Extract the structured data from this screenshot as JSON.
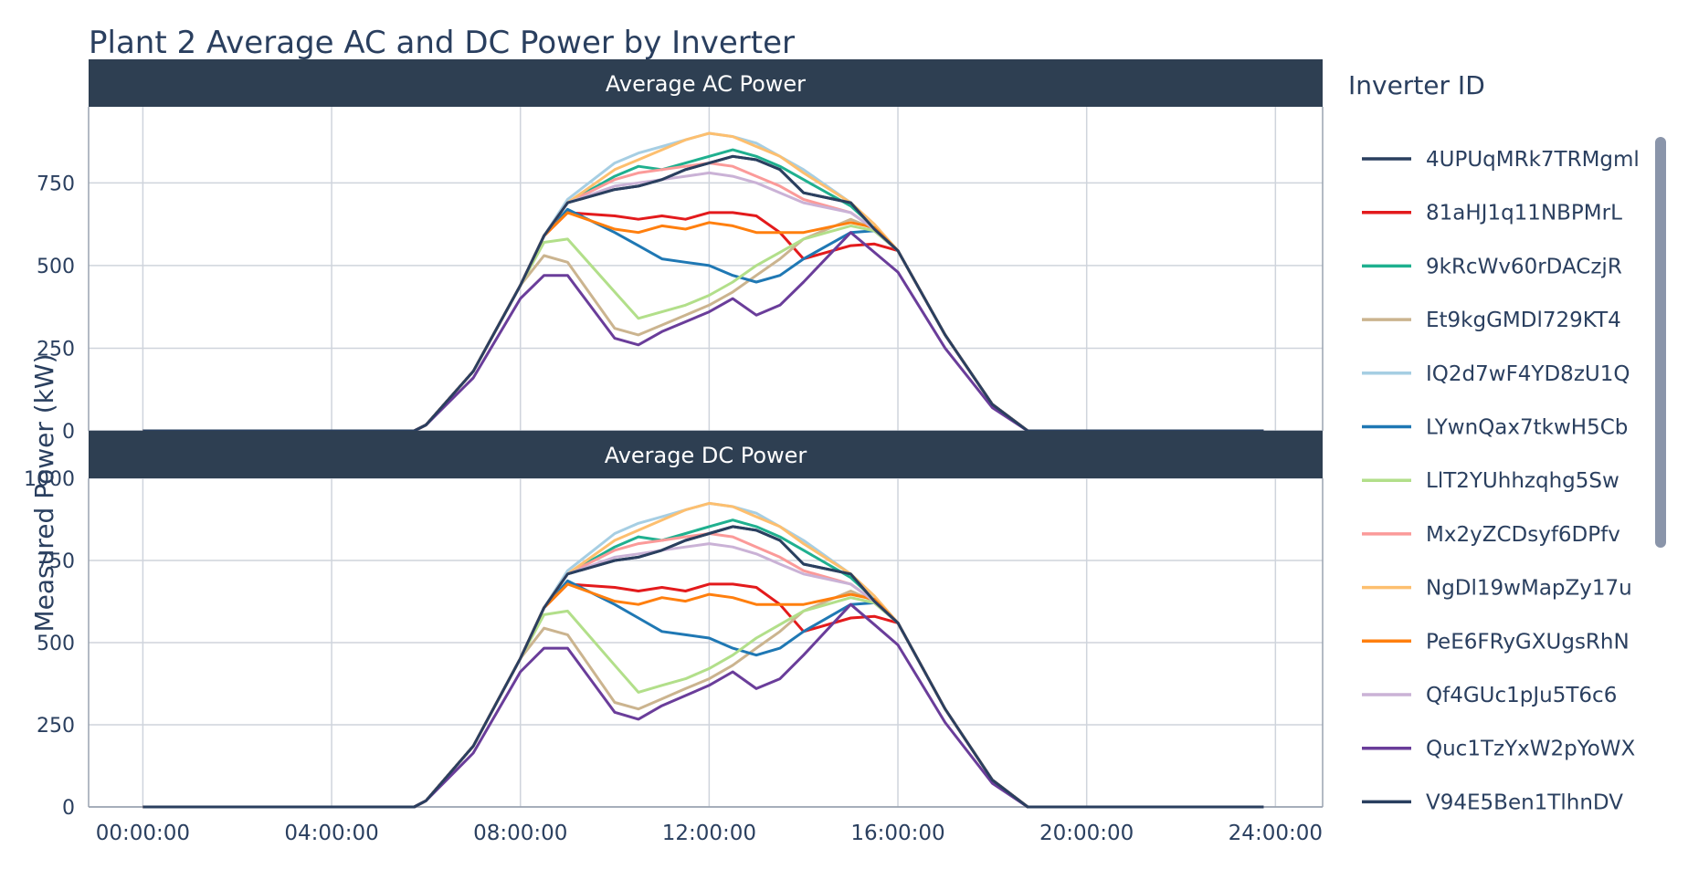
{
  "chart_data": {
    "type": "line",
    "title": "Plant 2 Average AC and DC Power by Inverter",
    "ylabel": "Measured Power (kW)",
    "xlabel": "",
    "legend_title": "Inverter ID",
    "legend_placement": "right",
    "grid": true,
    "x_ticks": [
      "00:00:00",
      "04:00:00",
      "08:00:00",
      "12:00:00",
      "16:00:00",
      "20:00:00",
      "24:00:00"
    ],
    "x_tick_hours": [
      0,
      4,
      8,
      12,
      16,
      20,
      24
    ],
    "xlim_hours": [
      -1.15,
      25.0
    ],
    "x_hours": [
      0,
      5.75,
      6,
      7,
      8,
      8.5,
      9,
      10,
      10.5,
      11,
      11.5,
      12,
      12.5,
      13,
      13.5,
      14,
      15,
      15.5,
      16,
      17,
      18,
      18.75,
      23.75
    ],
    "series": [
      {
        "name": "4UPUqMRk7TRMgml",
        "color": "#2a3f5f"
      },
      {
        "name": "81aHJ1q11NBPMrL",
        "color": "#e31a1c"
      },
      {
        "name": "9kRcWv60rDACzjR",
        "color": "#1fb08f"
      },
      {
        "name": "Et9kgGMDl729KT4",
        "color": "#cbb48f"
      },
      {
        "name": "IQ2d7wF4YD8zU1Q",
        "color": "#a6cee3"
      },
      {
        "name": "LYwnQax7tkwH5Cb",
        "color": "#1f78b4"
      },
      {
        "name": "LlT2YUhhzqhg5Sw",
        "color": "#b2df8a"
      },
      {
        "name": "Mx2yZCDsyf6DPfv",
        "color": "#fb9a99"
      },
      {
        "name": "NgDl19wMapZy17u",
        "color": "#fdbf6f"
      },
      {
        "name": "PeE6FRyGXUgsRhN",
        "color": "#ff7f0e"
      },
      {
        "name": "Qf4GUc1pJu5T6c6",
        "color": "#cab2d6"
      },
      {
        "name": "Quc1TzYxW2pYoWX",
        "color": "#6a3d9a"
      },
      {
        "name": "V94E5Ben1TlhnDV",
        "color": "#2a3f5f"
      }
    ],
    "panels": [
      {
        "title": "Average AC Power",
        "ylim": [
          0,
          980
        ],
        "y_ticks": [
          0,
          250,
          500,
          750
        ],
        "values": [
          [
            0,
            0,
            18,
            180,
            440,
            590,
            690,
            730,
            740,
            760,
            790,
            810,
            830,
            820,
            790,
            720,
            690,
            610,
            545,
            290,
            80,
            0,
            0
          ],
          [
            0,
            0,
            18,
            180,
            440,
            590,
            660,
            650,
            640,
            650,
            640,
            660,
            660,
            650,
            600,
            520,
            560,
            565,
            545,
            290,
            80,
            0,
            0
          ],
          [
            0,
            0,
            18,
            180,
            440,
            590,
            690,
            770,
            800,
            790,
            810,
            830,
            850,
            830,
            800,
            760,
            680,
            615,
            545,
            290,
            80,
            0,
            0
          ],
          [
            0,
            0,
            18,
            180,
            440,
            530,
            510,
            310,
            290,
            320,
            350,
            380,
            420,
            470,
            520,
            580,
            640,
            610,
            545,
            290,
            80,
            0,
            0
          ],
          [
            0,
            0,
            18,
            180,
            440,
            590,
            700,
            810,
            840,
            860,
            880,
            900,
            890,
            870,
            830,
            790,
            690,
            620,
            545,
            290,
            80,
            0,
            0
          ],
          [
            0,
            0,
            18,
            180,
            440,
            590,
            670,
            600,
            560,
            520,
            510,
            500,
            470,
            450,
            470,
            520,
            600,
            605,
            545,
            290,
            80,
            0,
            0
          ],
          [
            0,
            0,
            18,
            180,
            440,
            570,
            580,
            420,
            340,
            360,
            380,
            410,
            450,
            500,
            540,
            580,
            620,
            605,
            545,
            290,
            80,
            0,
            0
          ],
          [
            0,
            0,
            18,
            180,
            440,
            590,
            690,
            760,
            780,
            790,
            800,
            810,
            800,
            770,
            740,
            700,
            660,
            610,
            545,
            290,
            80,
            0,
            0
          ],
          [
            0,
            0,
            18,
            180,
            440,
            590,
            690,
            790,
            820,
            850,
            880,
            900,
            890,
            860,
            830,
            780,
            690,
            625,
            545,
            290,
            80,
            0,
            0
          ],
          [
            0,
            0,
            18,
            180,
            440,
            590,
            660,
            610,
            600,
            620,
            610,
            630,
            620,
            600,
            600,
            600,
            630,
            615,
            545,
            290,
            80,
            0,
            0
          ],
          [
            0,
            0,
            18,
            180,
            440,
            590,
            690,
            740,
            750,
            760,
            770,
            780,
            770,
            750,
            720,
            690,
            660,
            610,
            545,
            290,
            80,
            0,
            0
          ],
          [
            0,
            0,
            18,
            160,
            400,
            470,
            470,
            280,
            260,
            300,
            330,
            360,
            400,
            350,
            380,
            450,
            600,
            540,
            480,
            250,
            70,
            0,
            0
          ],
          [
            0,
            0,
            18,
            180,
            440,
            590,
            690,
            730,
            740,
            760,
            790,
            810,
            830,
            820,
            790,
            720,
            690,
            610,
            545,
            290,
            80,
            0,
            0
          ]
        ]
      },
      {
        "title": "Average DC Power",
        "ylim": [
          0,
          1000
        ],
        "y_ticks": [
          0,
          250,
          500,
          750,
          1000
        ],
        "values": [
          [
            0,
            0,
            19,
            185,
            452,
            606,
            709,
            750,
            760,
            781,
            811,
            832,
            853,
            842,
            811,
            739,
            709,
            626,
            560,
            298,
            82,
            0,
            0
          ],
          [
            0,
            0,
            19,
            185,
            452,
            606,
            678,
            668,
            657,
            668,
            657,
            678,
            678,
            668,
            616,
            534,
            575,
            580,
            560,
            298,
            82,
            0,
            0
          ],
          [
            0,
            0,
            19,
            185,
            452,
            606,
            709,
            791,
            822,
            811,
            832,
            853,
            873,
            853,
            822,
            781,
            698,
            632,
            560,
            298,
            82,
            0,
            0
          ],
          [
            0,
            0,
            19,
            185,
            452,
            544,
            524,
            318,
            298,
            329,
            360,
            390,
            431,
            483,
            534,
            596,
            657,
            626,
            560,
            298,
            82,
            0,
            0
          ],
          [
            0,
            0,
            19,
            185,
            452,
            606,
            719,
            832,
            863,
            883,
            904,
            924,
            914,
            894,
            853,
            811,
            709,
            637,
            560,
            298,
            82,
            0,
            0
          ],
          [
            0,
            0,
            19,
            185,
            452,
            606,
            688,
            616,
            575,
            534,
            524,
            514,
            483,
            462,
            483,
            534,
            616,
            621,
            560,
            298,
            82,
            0,
            0
          ],
          [
            0,
            0,
            19,
            185,
            452,
            585,
            596,
            431,
            349,
            370,
            390,
            421,
            462,
            514,
            555,
            596,
            637,
            621,
            560,
            298,
            82,
            0,
            0
          ],
          [
            0,
            0,
            19,
            185,
            452,
            606,
            709,
            781,
            801,
            811,
            822,
            832,
            822,
            791,
            760,
            719,
            678,
            626,
            560,
            298,
            82,
            0,
            0
          ],
          [
            0,
            0,
            19,
            185,
            452,
            606,
            709,
            811,
            842,
            873,
            904,
            924,
            914,
            883,
            853,
            801,
            709,
            642,
            560,
            298,
            82,
            0,
            0
          ],
          [
            0,
            0,
            19,
            185,
            452,
            606,
            678,
            626,
            616,
            637,
            626,
            647,
            637,
            616,
            616,
            616,
            647,
            632,
            560,
            298,
            82,
            0,
            0
          ],
          [
            0,
            0,
            19,
            185,
            452,
            606,
            709,
            760,
            770,
            781,
            791,
            801,
            791,
            770,
            739,
            709,
            678,
            626,
            560,
            298,
            82,
            0,
            0
          ],
          [
            0,
            0,
            19,
            164,
            411,
            483,
            483,
            288,
            267,
            308,
            339,
            370,
            411,
            360,
            390,
            462,
            616,
            555,
            493,
            257,
            72,
            0,
            0
          ],
          [
            0,
            0,
            19,
            185,
            452,
            606,
            709,
            750,
            760,
            781,
            811,
            832,
            853,
            842,
            811,
            739,
            709,
            626,
            560,
            298,
            82,
            0,
            0
          ]
        ]
      }
    ]
  }
}
